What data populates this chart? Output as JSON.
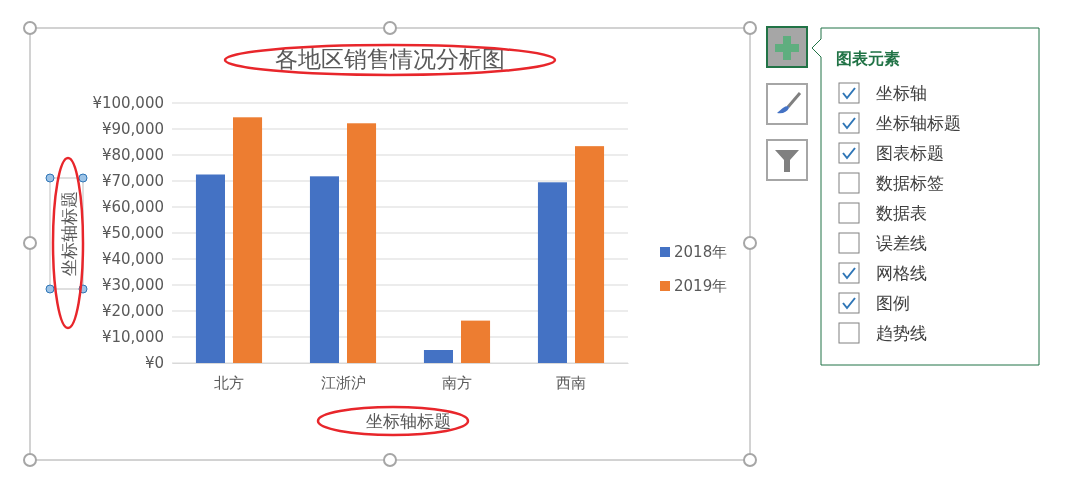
{
  "chart_data": {
    "type": "bar",
    "title": "各地区销售情况分析图",
    "xlabel": "坐标轴标题",
    "ylabel": "坐标轴标题",
    "categories": [
      "北方",
      "江浙沪",
      "南方",
      "西南"
    ],
    "series": [
      {
        "name": "2018年",
        "color": "#4472c4",
        "values": [
          72500,
          71800,
          5000,
          69500
        ]
      },
      {
        "name": "2019年",
        "color": "#ed7d31",
        "values": [
          94500,
          92200,
          16300,
          83400
        ]
      }
    ],
    "ylim": [
      0,
      100000
    ],
    "yticks": [
      {
        "value": 0,
        "label": "¥0"
      },
      {
        "value": 10000,
        "label": "¥10,000"
      },
      {
        "value": 20000,
        "label": "¥20,000"
      },
      {
        "value": 30000,
        "label": "¥30,000"
      },
      {
        "value": 40000,
        "label": "¥40,000"
      },
      {
        "value": 50000,
        "label": "¥50,000"
      },
      {
        "value": 60000,
        "label": "¥60,000"
      },
      {
        "value": 70000,
        "label": "¥70,000"
      },
      {
        "value": 80000,
        "label": "¥80,000"
      },
      {
        "value": 90000,
        "label": "¥90,000"
      },
      {
        "value": 100000,
        "label": "¥100,000"
      }
    ],
    "grid": "y",
    "legend": "right",
    "annotations": [
      "图表元素",
      "坐标轴",
      "坐标轴标题",
      "图表标题",
      "数据标签",
      "数据表",
      "误差线",
      "网格线",
      "图例",
      "趋势线"
    ]
  }
}
